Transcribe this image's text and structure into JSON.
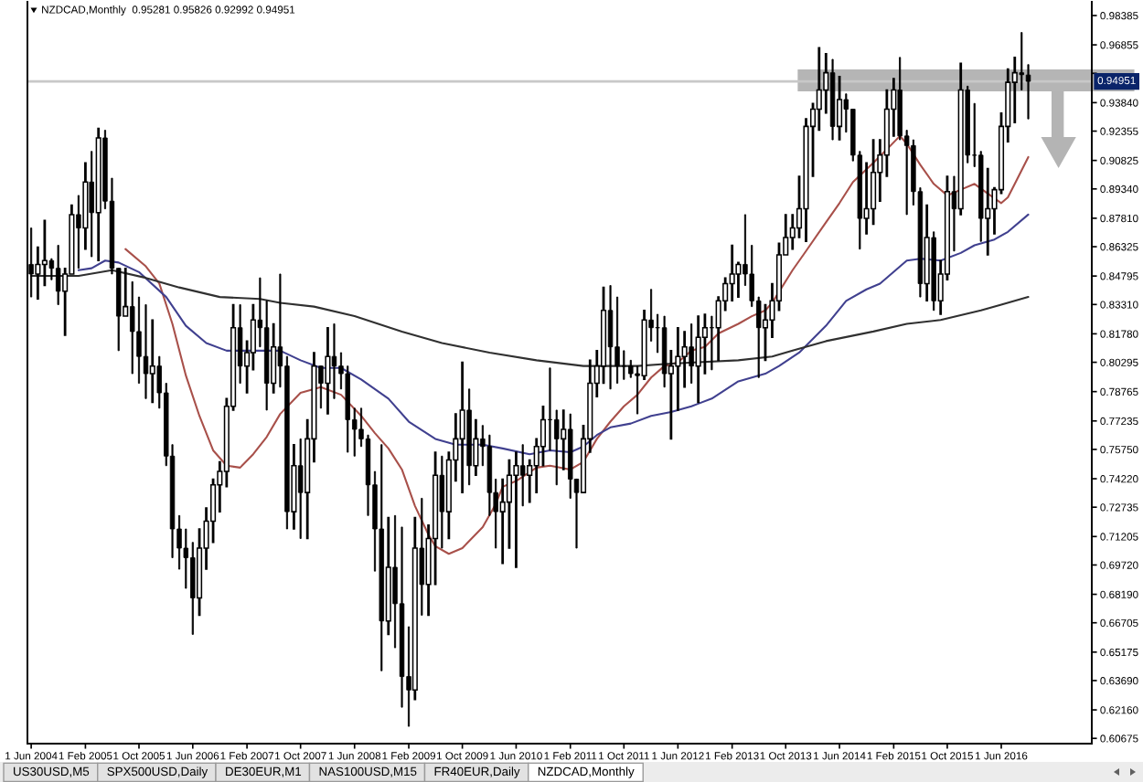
{
  "chart_data": {
    "type": "candlestick",
    "title": "NZDCAD,Monthly  0.95281 0.95826 0.92992 0.94951",
    "color": "#000000",
    "x": [
      "2004-06",
      "2004-07",
      "2004-08",
      "2004-09",
      "2004-10",
      "2004-11",
      "2004-12",
      "2005-01",
      "2005-02",
      "2005-03",
      "2005-04",
      "2005-05",
      "2005-06",
      "2005-07",
      "2005-08",
      "2005-09",
      "2005-10",
      "2005-11",
      "2005-12",
      "2006-01",
      "2006-02",
      "2006-03",
      "2006-04",
      "2006-05",
      "2006-06",
      "2006-07",
      "2006-08",
      "2006-09",
      "2006-10",
      "2006-11",
      "2006-12",
      "2007-01",
      "2007-02",
      "2007-03",
      "2007-04",
      "2007-05",
      "2007-06",
      "2007-07",
      "2007-08",
      "2007-09",
      "2007-10",
      "2007-11",
      "2007-12",
      "2008-01",
      "2008-02",
      "2008-03",
      "2008-04",
      "2008-05",
      "2008-06",
      "2008-07",
      "2008-08",
      "2008-09",
      "2008-10",
      "2008-11",
      "2008-12",
      "2009-01",
      "2009-02",
      "2009-03",
      "2009-04",
      "2009-05",
      "2009-06",
      "2009-07",
      "2009-08",
      "2009-09",
      "2009-10",
      "2009-11",
      "2009-12",
      "2010-01",
      "2010-02",
      "2010-03",
      "2010-04",
      "2010-05",
      "2010-06",
      "2010-07",
      "2010-08",
      "2010-09",
      "2010-10",
      "2010-11",
      "2010-12",
      "2011-01",
      "2011-02",
      "2011-03",
      "2011-04",
      "2011-05",
      "2011-06",
      "2011-07",
      "2011-08",
      "2011-09",
      "2011-10",
      "2011-11",
      "2011-12",
      "2012-01",
      "2012-02",
      "2012-03",
      "2012-04",
      "2012-05",
      "2012-06",
      "2012-07",
      "2012-08",
      "2012-09",
      "2012-10",
      "2012-11",
      "2012-12",
      "2013-01",
      "2013-02",
      "2013-03",
      "2013-04",
      "2013-05",
      "2013-06",
      "2013-07",
      "2013-08",
      "2013-09",
      "2013-10",
      "2013-11",
      "2013-12",
      "2014-01",
      "2014-02",
      "2014-03",
      "2014-04",
      "2014-05",
      "2014-06",
      "2014-07",
      "2014-08",
      "2014-09",
      "2014-10",
      "2014-11",
      "2014-12",
      "2015-01",
      "2015-02",
      "2015-03",
      "2015-04",
      "2015-05",
      "2015-06",
      "2015-07",
      "2015-08",
      "2015-09",
      "2015-10",
      "2015-11",
      "2015-12",
      "2016-01",
      "2016-02",
      "2016-03",
      "2016-04",
      "2016-05",
      "2016-06",
      "2016-07",
      "2016-08",
      "2016-09",
      "2016-10"
    ],
    "ohlc": [
      [
        0.854,
        0.873,
        0.837,
        0.849
      ],
      [
        0.849,
        0.863,
        0.836,
        0.854
      ],
      [
        0.854,
        0.877,
        0.843,
        0.856
      ],
      [
        0.856,
        0.857,
        0.846,
        0.852
      ],
      [
        0.852,
        0.864,
        0.833,
        0.84
      ],
      [
        0.84,
        0.852,
        0.817,
        0.849
      ],
      [
        0.849,
        0.885,
        0.849,
        0.88
      ],
      [
        0.88,
        0.89,
        0.852,
        0.873
      ],
      [
        0.873,
        0.907,
        0.862,
        0.897
      ],
      [
        0.897,
        0.913,
        0.858,
        0.881
      ],
      [
        0.881,
        0.925,
        0.856,
        0.92
      ],
      [
        0.92,
        0.924,
        0.883,
        0.887
      ],
      [
        0.887,
        0.899,
        0.849,
        0.852
      ],
      [
        0.852,
        0.852,
        0.809,
        0.827
      ],
      [
        0.827,
        0.852,
        0.827,
        0.832
      ],
      [
        0.832,
        0.845,
        0.797,
        0.819
      ],
      [
        0.819,
        0.837,
        0.792,
        0.806
      ],
      [
        0.806,
        0.833,
        0.784,
        0.797
      ],
      [
        0.797,
        0.825,
        0.782,
        0.801
      ],
      [
        0.801,
        0.806,
        0.779,
        0.787
      ],
      [
        0.787,
        0.792,
        0.749,
        0.754
      ],
      [
        0.754,
        0.76,
        0.701,
        0.716
      ],
      [
        0.716,
        0.723,
        0.695,
        0.706
      ],
      [
        0.706,
        0.716,
        0.685,
        0.701
      ],
      [
        0.701,
        0.709,
        0.661,
        0.68
      ],
      [
        0.68,
        0.716,
        0.671,
        0.706
      ],
      [
        0.706,
        0.727,
        0.695,
        0.72
      ],
      [
        0.72,
        0.742,
        0.709,
        0.739
      ],
      [
        0.739,
        0.751,
        0.725,
        0.746
      ],
      [
        0.746,
        0.784,
        0.738,
        0.78
      ],
      [
        0.78,
        0.833,
        0.778,
        0.821
      ],
      [
        0.821,
        0.833,
        0.792,
        0.801
      ],
      [
        0.801,
        0.814,
        0.787,
        0.808
      ],
      [
        0.808,
        0.833,
        0.799,
        0.825
      ],
      [
        0.825,
        0.847,
        0.811,
        0.821
      ],
      [
        0.821,
        0.835,
        0.778,
        0.792
      ],
      [
        0.792,
        0.823,
        0.787,
        0.811
      ],
      [
        0.811,
        0.849,
        0.79,
        0.801
      ],
      [
        0.801,
        0.806,
        0.716,
        0.725
      ],
      [
        0.725,
        0.76,
        0.716,
        0.749
      ],
      [
        0.749,
        0.763,
        0.711,
        0.735
      ],
      [
        0.735,
        0.773,
        0.711,
        0.763
      ],
      [
        0.763,
        0.808,
        0.751,
        0.801
      ],
      [
        0.801,
        0.801,
        0.779,
        0.792
      ],
      [
        0.792,
        0.821,
        0.776,
        0.806
      ],
      [
        0.806,
        0.823,
        0.784,
        0.801
      ],
      [
        0.801,
        0.808,
        0.789,
        0.797
      ],
      [
        0.797,
        0.801,
        0.756,
        0.773
      ],
      [
        0.773,
        0.779,
        0.754,
        0.768
      ],
      [
        0.768,
        0.779,
        0.759,
        0.763
      ],
      [
        0.763,
        0.765,
        0.723,
        0.739
      ],
      [
        0.739,
        0.746,
        0.694,
        0.716
      ],
      [
        0.716,
        0.76,
        0.642,
        0.668
      ],
      [
        0.668,
        0.722,
        0.661,
        0.696
      ],
      [
        0.696,
        0.723,
        0.654,
        0.677
      ],
      [
        0.677,
        0.717,
        0.623,
        0.639
      ],
      [
        0.639,
        0.665,
        0.613,
        0.632
      ],
      [
        0.632,
        0.722,
        0.627,
        0.706
      ],
      [
        0.706,
        0.732,
        0.671,
        0.687
      ],
      [
        0.687,
        0.718,
        0.671,
        0.711
      ],
      [
        0.711,
        0.756,
        0.687,
        0.744
      ],
      [
        0.744,
        0.754,
        0.706,
        0.725
      ],
      [
        0.725,
        0.756,
        0.711,
        0.752
      ],
      [
        0.752,
        0.776,
        0.741,
        0.763
      ],
      [
        0.763,
        0.803,
        0.735,
        0.778
      ],
      [
        0.778,
        0.789,
        0.739,
        0.749
      ],
      [
        0.749,
        0.773,
        0.744,
        0.763
      ],
      [
        0.763,
        0.77,
        0.749,
        0.759
      ],
      [
        0.759,
        0.765,
        0.723,
        0.735
      ],
      [
        0.735,
        0.742,
        0.706,
        0.725
      ],
      [
        0.725,
        0.742,
        0.698,
        0.73
      ],
      [
        0.73,
        0.752,
        0.706,
        0.744
      ],
      [
        0.744,
        0.756,
        0.696,
        0.749
      ],
      [
        0.749,
        0.76,
        0.728,
        0.744
      ],
      [
        0.744,
        0.752,
        0.73,
        0.749
      ],
      [
        0.749,
        0.763,
        0.735,
        0.759
      ],
      [
        0.759,
        0.78,
        0.749,
        0.773
      ],
      [
        0.773,
        0.8,
        0.757,
        0.773
      ],
      [
        0.773,
        0.778,
        0.739,
        0.763
      ],
      [
        0.763,
        0.778,
        0.747,
        0.768
      ],
      [
        0.768,
        0.776,
        0.732,
        0.742
      ],
      [
        0.742,
        0.742,
        0.706,
        0.735
      ],
      [
        0.735,
        0.77,
        0.735,
        0.763
      ],
      [
        0.763,
        0.804,
        0.756,
        0.792
      ],
      [
        0.792,
        0.809,
        0.785,
        0.801
      ],
      [
        0.801,
        0.842,
        0.792,
        0.83
      ],
      [
        0.83,
        0.843,
        0.789,
        0.811
      ],
      [
        0.811,
        0.837,
        0.792,
        0.801
      ],
      [
        0.801,
        0.809,
        0.794,
        0.801
      ],
      [
        0.801,
        0.804,
        0.795,
        0.797
      ],
      [
        0.797,
        0.801,
        0.776,
        0.796
      ],
      [
        0.796,
        0.83,
        0.794,
        0.825
      ],
      [
        0.825,
        0.841,
        0.814,
        0.821
      ],
      [
        0.821,
        0.828,
        0.808,
        0.821
      ],
      [
        0.821,
        0.827,
        0.79,
        0.797
      ],
      [
        0.797,
        0.809,
        0.763,
        0.801
      ],
      [
        0.801,
        0.821,
        0.778,
        0.806
      ],
      [
        0.806,
        0.819,
        0.79,
        0.811
      ],
      [
        0.811,
        0.823,
        0.792,
        0.801
      ],
      [
        0.801,
        0.827,
        0.782,
        0.816
      ],
      [
        0.816,
        0.828,
        0.797,
        0.821
      ],
      [
        0.821,
        0.827,
        0.799,
        0.821
      ],
      [
        0.821,
        0.837,
        0.804,
        0.835
      ],
      [
        0.835,
        0.847,
        0.83,
        0.844
      ],
      [
        0.844,
        0.864,
        0.835,
        0.849
      ],
      [
        0.849,
        0.855,
        0.837,
        0.854
      ],
      [
        0.854,
        0.88,
        0.843,
        0.849
      ],
      [
        0.849,
        0.864,
        0.832,
        0.835
      ],
      [
        0.835,
        0.837,
        0.795,
        0.821
      ],
      [
        0.821,
        0.833,
        0.804,
        0.825
      ],
      [
        0.825,
        0.844,
        0.816,
        0.835
      ],
      [
        0.835,
        0.865,
        0.83,
        0.859
      ],
      [
        0.859,
        0.88,
        0.859,
        0.868
      ],
      [
        0.868,
        0.88,
        0.862,
        0.873
      ],
      [
        0.873,
        0.9,
        0.868,
        0.883
      ],
      [
        0.883,
        0.93,
        0.866,
        0.926
      ],
      [
        0.926,
        0.938,
        0.9,
        0.935
      ],
      [
        0.935,
        0.967,
        0.924,
        0.945
      ],
      [
        0.945,
        0.964,
        0.933,
        0.954
      ],
      [
        0.954,
        0.961,
        0.919,
        0.926
      ],
      [
        0.926,
        0.952,
        0.919,
        0.94
      ],
      [
        0.94,
        0.943,
        0.923,
        0.935
      ],
      [
        0.935,
        0.935,
        0.908,
        0.911
      ],
      [
        0.911,
        0.913,
        0.862,
        0.878
      ],
      [
        0.878,
        0.907,
        0.87,
        0.883
      ],
      [
        0.883,
        0.919,
        0.875,
        0.902
      ],
      [
        0.902,
        0.919,
        0.887,
        0.911
      ],
      [
        0.911,
        0.945,
        0.9,
        0.935
      ],
      [
        0.935,
        0.951,
        0.921,
        0.945
      ],
      [
        0.945,
        0.962,
        0.919,
        0.921
      ],
      [
        0.921,
        0.924,
        0.88,
        0.916
      ],
      [
        0.916,
        0.919,
        0.885,
        0.892
      ],
      [
        0.892,
        0.894,
        0.837,
        0.844
      ],
      [
        0.844,
        0.885,
        0.835,
        0.868
      ],
      [
        0.868,
        0.871,
        0.83,
        0.835
      ],
      [
        0.835,
        0.856,
        0.828,
        0.849
      ],
      [
        0.849,
        0.9,
        0.846,
        0.892
      ],
      [
        0.892,
        0.9,
        0.861,
        0.883
      ],
      [
        0.883,
        0.959,
        0.88,
        0.945
      ],
      [
        0.945,
        0.947,
        0.907,
        0.911
      ],
      [
        0.911,
        0.938,
        0.905,
        0.911
      ],
      [
        0.911,
        0.913,
        0.866,
        0.878
      ],
      [
        0.878,
        0.904,
        0.859,
        0.883
      ],
      [
        0.883,
        0.894,
        0.87,
        0.893
      ],
      [
        0.893,
        0.933,
        0.891,
        0.926
      ],
      [
        0.926,
        0.956,
        0.918,
        0.949
      ],
      [
        0.949,
        0.962,
        0.928,
        0.954
      ],
      [
        0.954,
        0.975,
        0.945,
        0.953
      ],
      [
        0.95281,
        0.95826,
        0.92992,
        0.94951
      ]
    ],
    "series": [
      {
        "type": "line",
        "color": "#a8504a",
        "x": [
          "2005-08",
          "2005-11",
          "2006-01",
          "2006-03",
          "2006-05",
          "2006-07",
          "2006-09",
          "2006-11",
          "2007-01",
          "2007-03",
          "2007-05",
          "2007-07",
          "2007-10",
          "2008-01",
          "2008-04",
          "2008-07",
          "2008-09",
          "2008-11",
          "2009-01",
          "2009-03",
          "2009-05",
          "2009-06",
          "2009-08",
          "2009-10",
          "2010-01",
          "2010-03",
          "2010-04",
          "2010-06",
          "2010-09",
          "2010-11",
          "2011-02",
          "2011-04",
          "2011-06",
          "2011-08",
          "2011-10",
          "2011-12",
          "2012-02",
          "2012-04",
          "2012-06",
          "2012-08",
          "2012-10",
          "2012-12",
          "2013-03",
          "2013-05",
          "2013-07",
          "2013-08",
          "2013-11",
          "2014-01",
          "2014-04",
          "2014-06",
          "2014-08",
          "2014-11",
          "2015-01",
          "2015-03",
          "2015-04",
          "2015-06",
          "2015-08",
          "2015-10",
          "2015-12",
          "2016-02",
          "2016-04",
          "2016-06",
          "2016-07",
          "2016-08",
          "2016-10"
        ],
        "values": [
          0.862,
          0.853,
          0.844,
          0.823,
          0.796,
          0.775,
          0.757,
          0.749,
          0.748,
          0.755,
          0.764,
          0.776,
          0.787,
          0.79,
          0.786,
          0.775,
          0.766,
          0.758,
          0.747,
          0.728,
          0.713,
          0.707,
          0.703,
          0.706,
          0.717,
          0.729,
          0.738,
          0.741,
          0.748,
          0.749,
          0.747,
          0.751,
          0.763,
          0.772,
          0.78,
          0.786,
          0.795,
          0.801,
          0.803,
          0.809,
          0.811,
          0.818,
          0.823,
          0.827,
          0.83,
          0.834,
          0.851,
          0.861,
          0.876,
          0.886,
          0.897,
          0.907,
          0.914,
          0.921,
          0.917,
          0.906,
          0.896,
          0.89,
          0.893,
          0.896,
          0.891,
          0.886,
          0.889,
          0.896,
          0.91
        ]
      },
      {
        "type": "line",
        "color": "#40408f",
        "x": [
          "2005-01",
          "2005-03",
          "2005-05",
          "2005-07",
          "2005-10",
          "2006-02",
          "2006-05",
          "2006-08",
          "2006-11",
          "2007-03",
          "2007-07",
          "2007-10",
          "2008-01",
          "2008-04",
          "2008-07",
          "2008-11",
          "2009-02",
          "2009-06",
          "2009-09",
          "2010-01",
          "2010-04",
          "2010-08",
          "2010-11",
          "2011-02",
          "2011-04",
          "2011-06",
          "2011-08",
          "2011-11",
          "2012-02",
          "2012-05",
          "2012-08",
          "2012-11",
          "2013-03",
          "2013-07",
          "2013-09",
          "2013-12",
          "2014-04",
          "2014-07",
          "2014-10",
          "2014-12",
          "2015-04",
          "2015-06",
          "2015-09",
          "2015-12",
          "2016-02",
          "2016-05",
          "2016-07",
          "2016-10"
        ],
        "values": [
          0.851,
          0.852,
          0.856,
          0.855,
          0.85,
          0.837,
          0.822,
          0.813,
          0.809,
          0.809,
          0.809,
          0.804,
          0.8,
          0.8,
          0.794,
          0.784,
          0.772,
          0.763,
          0.76,
          0.76,
          0.758,
          0.755,
          0.757,
          0.756,
          0.759,
          0.765,
          0.769,
          0.771,
          0.775,
          0.777,
          0.78,
          0.784,
          0.793,
          0.797,
          0.801,
          0.808,
          0.822,
          0.835,
          0.841,
          0.844,
          0.856,
          0.857,
          0.856,
          0.86,
          0.864,
          0.867,
          0.871,
          0.88
        ]
      },
      {
        "type": "line",
        "color": "#303030",
        "x": [
          "2004-06",
          "2005-01",
          "2005-06",
          "2005-11",
          "2006-04",
          "2006-10",
          "2007-04",
          "2007-07",
          "2007-12",
          "2008-06",
          "2009-01",
          "2009-07",
          "2010-02",
          "2010-09",
          "2011-04",
          "2011-12",
          "2012-04",
          "2012-09",
          "2013-03",
          "2013-08",
          "2013-11",
          "2014-04",
          "2014-11",
          "2015-04",
          "2015-09",
          "2016-03",
          "2016-06",
          "2016-10"
        ],
        "values": [
          0.848,
          0.848,
          0.851,
          0.847,
          0.842,
          0.837,
          0.836,
          0.834,
          0.832,
          0.827,
          0.819,
          0.813,
          0.808,
          0.804,
          0.801,
          0.801,
          0.802,
          0.803,
          0.804,
          0.806,
          0.809,
          0.814,
          0.819,
          0.823,
          0.825,
          0.83,
          0.833,
          0.837
        ]
      }
    ],
    "xlim": [
      "2004-05-15",
      "2017-07-15"
    ],
    "xticks": [
      {
        "value": "2004-06",
        "label": "1 Jun 2004"
      },
      {
        "value": "2005-02",
        "label": "1 Feb 2005"
      },
      {
        "value": "2005-10",
        "label": "1 Oct 2005"
      },
      {
        "value": "2006-06",
        "label": "1 Jun 2006"
      },
      {
        "value": "2007-02",
        "label": "1 Feb 2007"
      },
      {
        "value": "2007-10",
        "label": "1 Oct 2007"
      },
      {
        "value": "2008-06",
        "label": "1 Jun 2008"
      },
      {
        "value": "2009-02",
        "label": "1 Feb 2009"
      },
      {
        "value": "2009-10",
        "label": "1 Oct 2009"
      },
      {
        "value": "2010-06",
        "label": "1 Jun 2010"
      },
      {
        "value": "2011-02",
        "label": "1 Feb 2011"
      },
      {
        "value": "2011-10",
        "label": "1 Oct 2011"
      },
      {
        "value": "2012-06",
        "label": "1 Jun 2012"
      },
      {
        "value": "2013-02",
        "label": "1 Feb 2013"
      },
      {
        "value": "2013-10",
        "label": "1 Oct 2013"
      },
      {
        "value": "2014-06",
        "label": "1 Jun 2014"
      },
      {
        "value": "2015-02",
        "label": "1 Feb 2015"
      },
      {
        "value": "2015-10",
        "label": "1 Oct 2015"
      },
      {
        "value": "2016-06",
        "label": "1 Jun 2016"
      }
    ],
    "ylim": [
      0.604,
      0.991
    ],
    "yticks": [
      0.98385,
      0.96855,
      {
        "value": 0.9537,
        "label": null
      },
      {
        "value": 0.9384,
        "label": "0.93840"
      },
      0.92355,
      0.90825,
      {
        "value": 0.8934,
        "label": "0.89340"
      },
      {
        "value": 0.8781,
        "label": "0.87810"
      },
      0.86325,
      0.84795,
      {
        "value": 0.8331,
        "label": "0.83310"
      },
      {
        "value": 0.8178,
        "label": "0.81780"
      },
      0.80295,
      0.78765,
      0.77235,
      {
        "value": 0.7575,
        "label": "0.75750"
      },
      {
        "value": 0.7422,
        "label": "0.74220"
      },
      0.72735,
      0.71205,
      {
        "value": 0.6972,
        "label": "0.69720"
      },
      {
        "value": 0.6819,
        "label": "0.68190"
      },
      0.66705,
      0.65175,
      {
        "value": 0.6369,
        "label": "0.63690"
      },
      {
        "value": 0.6216,
        "label": "0.62160"
      },
      0.60675
    ],
    "ref_lines": [
      {
        "axis": "y",
        "value": 0.94951,
        "label": "0.94951",
        "color": "#c8c8c8"
      }
    ],
    "annotations": [
      "US30USD,M5",
      "SPX500USD,Daily",
      "DE30EUR,M1",
      "NAS100USD,M15",
      "FR40EUR,Daily",
      "NZDCAD,Monthly"
    ]
  }
}
